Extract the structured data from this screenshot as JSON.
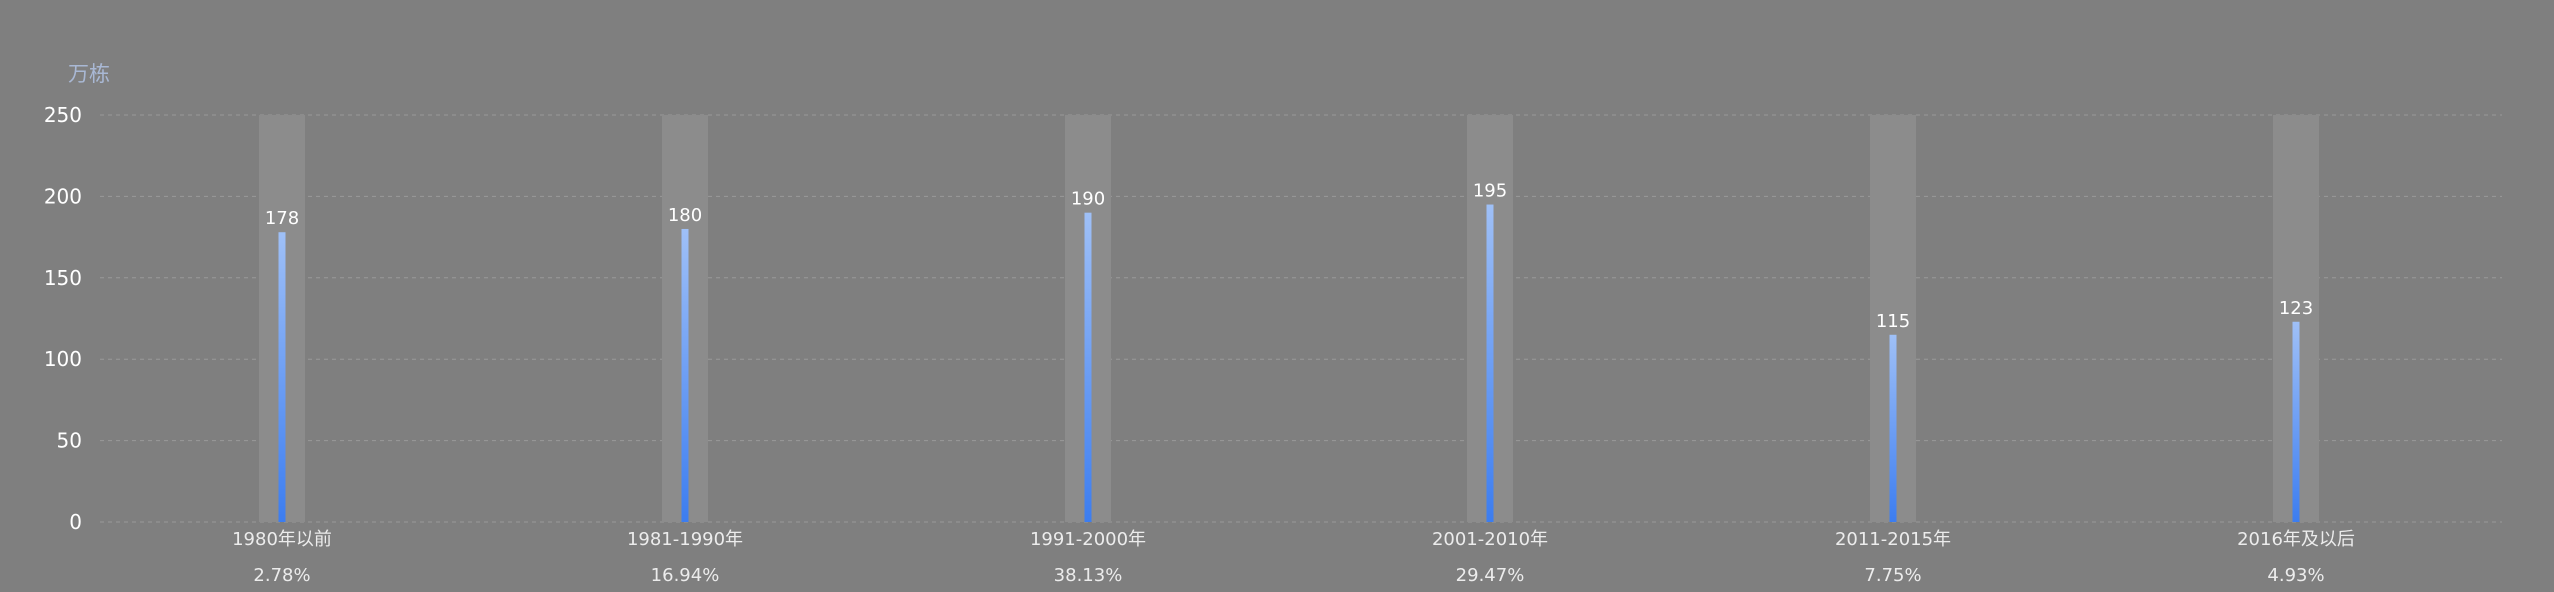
{
  "chart_data": {
    "type": "bar",
    "unit_label": "万栋",
    "categories": [
      "1980年以前",
      "1981-1990年",
      "1991-2000年",
      "2001-2010年",
      "2011-2015年",
      "2016年及以后"
    ],
    "values": [
      178,
      180,
      190,
      195,
      115,
      123
    ],
    "percentages": [
      "2.78%",
      "16.94%",
      "38.13%",
      "29.47%",
      "7.75%",
      "4.93%"
    ],
    "ylim": [
      0,
      250
    ],
    "yticks": [
      0,
      50,
      100,
      150,
      200,
      250
    ],
    "grid": true,
    "show_value_labels": true,
    "colors": {
      "background": "#7f7f7f",
      "bar_top": "#9fc0f7",
      "bar_bottom": "#3c7df0",
      "band": "#8c8c8c",
      "grid": "#9a9a9a"
    }
  }
}
